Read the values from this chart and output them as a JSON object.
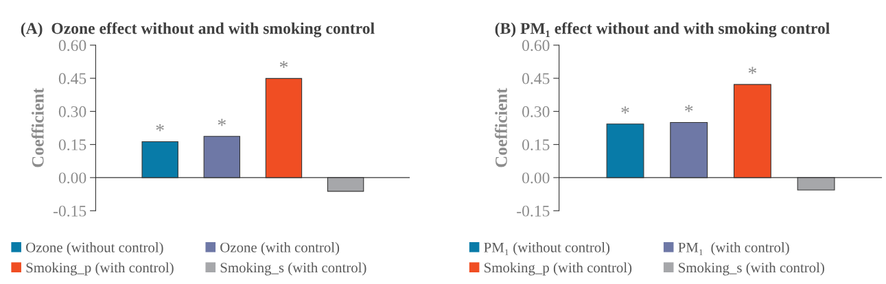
{
  "chart_data": [
    {
      "type": "bar",
      "title": "(A)  Ozone effect without and with smoking control",
      "ylabel": "Coefficient",
      "categories": [
        null,
        null,
        null,
        null
      ],
      "series": [
        {
          "name": "Ozone (without control)",
          "color": "#087ba8",
          "values": [
            0.163,
            null,
            null,
            null
          ],
          "value_labels": [
            "*",
            null,
            null,
            null
          ]
        },
        {
          "name": "Ozone (with control)",
          "color": "#6e78a6",
          "values": [
            null,
            0.187,
            null,
            null
          ],
          "value_labels": [
            null,
            "*",
            null,
            null
          ]
        },
        {
          "name": "Smoking_p (with control)",
          "color": "#f04e23",
          "values": [
            null,
            null,
            0.449,
            null
          ],
          "value_labels": [
            null,
            null,
            "*",
            null
          ]
        },
        {
          "name": "Smoking_s (with control)",
          "color": "#a6a7aa",
          "values": [
            null,
            null,
            null,
            -0.062
          ]
        }
      ],
      "ylim": [
        -0.15,
        0.6
      ],
      "yticks": [
        {
          "value": -0.15,
          "label": "-0.15"
        },
        {
          "value": 0,
          "label": "0.00"
        },
        {
          "value": 0.15,
          "label": "0.15"
        },
        {
          "value": 0.3,
          "label": "0.30"
        },
        {
          "value": 0.45,
          "label": "0.45"
        },
        {
          "value": 0.6,
          "label": "0.60"
        }
      ],
      "legend": "bottom"
    },
    {
      "type": "bar",
      "title": "(B) PM₁ effect without and with smoking control",
      "ylabel": "Coefficient",
      "categories": [
        null,
        null,
        null,
        null
      ],
      "series": [
        {
          "name": "PM₁ (without control)",
          "color": "#087ba8",
          "values": [
            0.243,
            null,
            null,
            null
          ],
          "value_labels": [
            "*",
            null,
            null,
            null
          ]
        },
        {
          "name": "PM₁  (with control)",
          "color": "#6e78a6",
          "values": [
            null,
            0.25,
            null,
            null
          ],
          "value_labels": [
            null,
            "*",
            null,
            null
          ]
        },
        {
          "name": "Smoking_p (with control)",
          "color": "#f04e23",
          "values": [
            null,
            null,
            0.422,
            null
          ],
          "value_labels": [
            null,
            null,
            "*",
            null
          ]
        },
        {
          "name": "Smoking_s (with control)",
          "color": "#a6a7aa",
          "values": [
            null,
            null,
            null,
            -0.056
          ]
        }
      ],
      "ylim": [
        -0.15,
        0.6
      ],
      "yticks": [
        {
          "value": -0.15,
          "label": "-0.15"
        },
        {
          "value": 0,
          "label": "0.00"
        },
        {
          "value": 0.15,
          "label": "0.15"
        },
        {
          "value": 0.3,
          "label": "0.30"
        },
        {
          "value": 0.45,
          "label": "0.45"
        },
        {
          "value": 0.6,
          "label": "0.60"
        }
      ],
      "legend": "bottom"
    }
  ]
}
